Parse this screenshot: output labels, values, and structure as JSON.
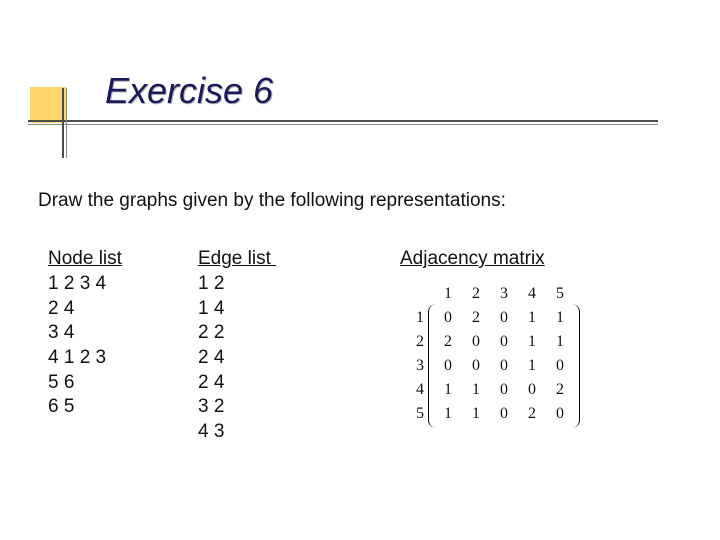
{
  "title": "Exercise 6",
  "prompt": "Draw the graphs given by the following representations:",
  "accent_color": "#fab908",
  "title_color": "#1a1a5a",
  "columns": {
    "node_list": {
      "header": "Node list",
      "rows": [
        "1 2 3 4",
        "2 4",
        "3 4",
        "4 1 2 3",
        "5 6",
        "6 5"
      ]
    },
    "edge_list": {
      "header": "Edge list ",
      "rows": [
        "1 2",
        "1 4",
        "2 2",
        "2 4",
        "2 4",
        "3 2",
        "4 3"
      ]
    },
    "adjacency": {
      "header": "Adjacency matrix",
      "col_labels": [
        "1",
        "2",
        "3",
        "4",
        "5"
      ],
      "row_labels": [
        "1",
        "2",
        "3",
        "4",
        "5"
      ],
      "values": [
        [
          0,
          2,
          0,
          1,
          1
        ],
        [
          2,
          0,
          0,
          1,
          1
        ],
        [
          0,
          0,
          0,
          1,
          0
        ],
        [
          1,
          1,
          0,
          0,
          2
        ],
        [
          1,
          1,
          0,
          2,
          0
        ]
      ]
    }
  }
}
